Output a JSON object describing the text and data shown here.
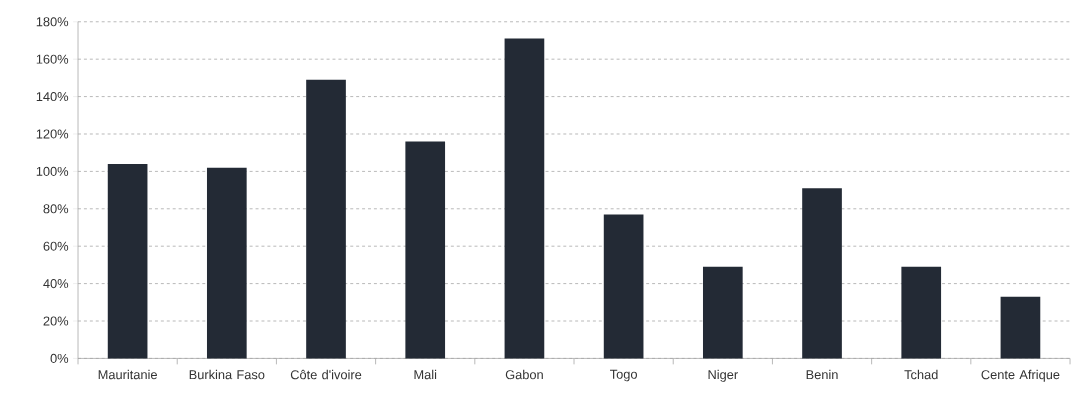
{
  "chart_data": {
    "type": "bar",
    "categories": [
      "Mauritanie",
      "Burkina Faso",
      "Côte d'ivoire",
      "Mali",
      "Gabon",
      "Togo",
      "Niger",
      "Benin",
      "Tchad",
      "Cente Afrique"
    ],
    "values": [
      104,
      102,
      149,
      116,
      171,
      77,
      49,
      91,
      49,
      33
    ],
    "color": "#232a35",
    "ylim": [
      0,
      180
    ],
    "yticks": [
      {
        "value": 0,
        "label": "0%"
      },
      {
        "value": 20,
        "label": "20%"
      },
      {
        "value": 40,
        "label": "40%"
      },
      {
        "value": 60,
        "label": "60%"
      },
      {
        "value": 80,
        "label": "80%"
      },
      {
        "value": 100,
        "label": "100%"
      },
      {
        "value": 120,
        "label": "120%"
      },
      {
        "value": 140,
        "label": "140%"
      },
      {
        "value": 160,
        "label": "160%"
      },
      {
        "value": 180,
        "label": "180%"
      }
    ],
    "grid": "y"
  }
}
